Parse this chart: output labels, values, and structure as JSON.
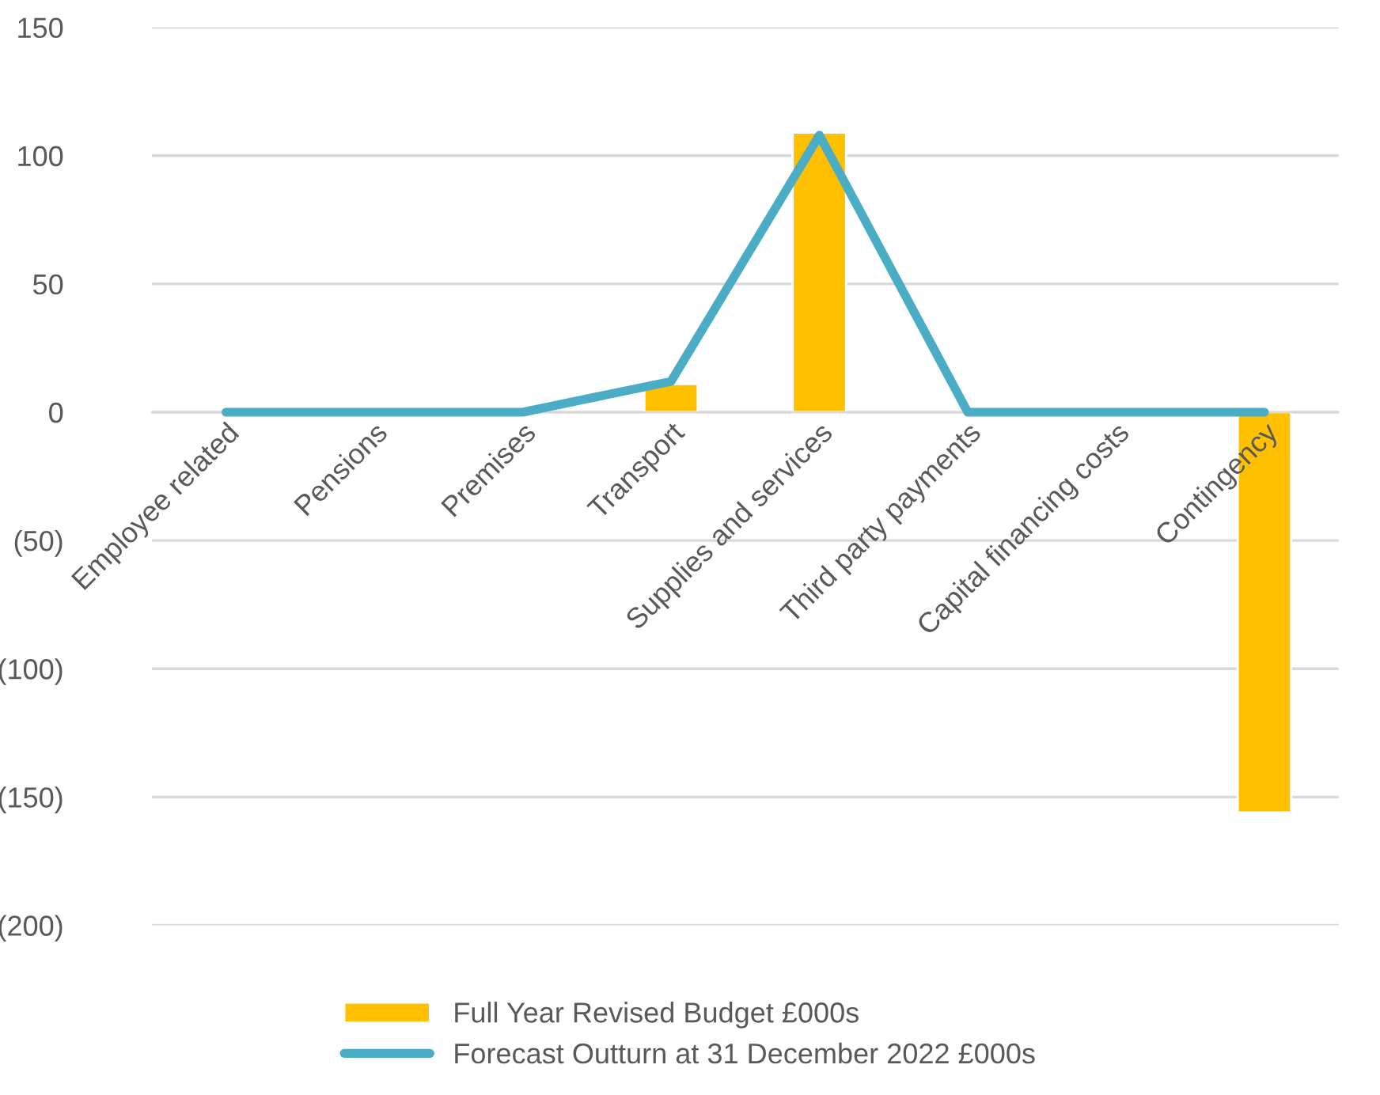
{
  "chart_data": {
    "type": "bar",
    "categories": [
      "Employee related",
      "Pensions",
      "Premises",
      "Transport",
      "Supplies and services",
      "Third party payments",
      "Capital financing costs",
      "Contingency"
    ],
    "series": [
      {
        "name": "Full Year Revised Budget £000s",
        "color": "#ffc000",
        "values": [
          null,
          null,
          null,
          11,
          109,
          null,
          null,
          -156
        ]
      },
      {
        "name": "Forecast Outturn at 31 December 2022 £000s",
        "type": "line",
        "color": "#4bacc6",
        "values": [
          0,
          0,
          0,
          12,
          108,
          0,
          0,
          0
        ]
      }
    ],
    "ylim": [
      -200,
      150
    ],
    "yticks": [
      {
        "value": -200,
        "label": "(200)"
      },
      {
        "value": -150,
        "label": "(150)"
      },
      {
        "value": -100,
        "label": "(100)"
      },
      {
        "value": -50,
        "label": "(50)"
      },
      0,
      50,
      100,
      150
    ],
    "grid": "y",
    "legend": "bottom",
    "marker": "none",
    "line_style": "solid"
  }
}
